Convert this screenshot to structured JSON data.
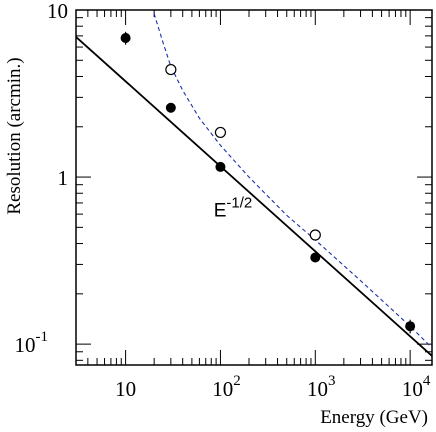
{
  "chart_data": {
    "type": "scatter",
    "xlabel": "Energy (GeV)",
    "ylabel": "Resolution (arcmin.)",
    "x_scale": "log",
    "y_scale": "log",
    "xlim": [
      3,
      17000
    ],
    "ylim": [
      0.075,
      10
    ],
    "x_ticks": [
      {
        "value": 10,
        "base": "10",
        "exp": ""
      },
      {
        "value": 100,
        "base": "10",
        "exp": "2"
      },
      {
        "value": 1000,
        "base": "10",
        "exp": "3"
      },
      {
        "value": 10000,
        "base": "10",
        "exp": "4"
      }
    ],
    "y_ticks": [
      {
        "value": 0.1,
        "base": "10",
        "exp": "-1"
      },
      {
        "value": 1,
        "base": "1",
        "exp": ""
      },
      {
        "value": 10,
        "base": "10",
        "exp": ""
      }
    ],
    "grid": false,
    "legend": "none",
    "series": [
      {
        "marker": "filled-circle",
        "color": "#000000",
        "x": [
          10,
          30,
          100,
          1000,
          10000
        ],
        "y": [
          6.8,
          2.6,
          1.15,
          0.33,
          0.128
        ],
        "yerr": [
          0.6,
          0.15,
          0.07,
          0.02,
          0.012
        ]
      },
      {
        "marker": "open-circle",
        "color": "#000000",
        "x": [
          30,
          100,
          1000
        ],
        "y": [
          4.4,
          1.85,
          0.45
        ]
      },
      {
        "style": "solid",
        "color": "#000000",
        "x": [
          3,
          17000
        ],
        "y": [
          6.9,
          0.085
        ]
      },
      {
        "style": "dashed",
        "color": "#1a2fa8",
        "x": [
          20,
          25,
          30,
          40,
          60,
          100,
          200,
          500,
          1000,
          3000,
          10000,
          17000
        ],
        "y": [
          9.5,
          6.3,
          4.6,
          3.3,
          2.25,
          1.55,
          1.0,
          0.59,
          0.42,
          0.24,
          0.128,
          0.095
        ]
      }
    ],
    "annotations": [
      {
        "text": "E",
        "superscript": "-1/2",
        "x": 85,
        "y": 0.58
      }
    ]
  }
}
